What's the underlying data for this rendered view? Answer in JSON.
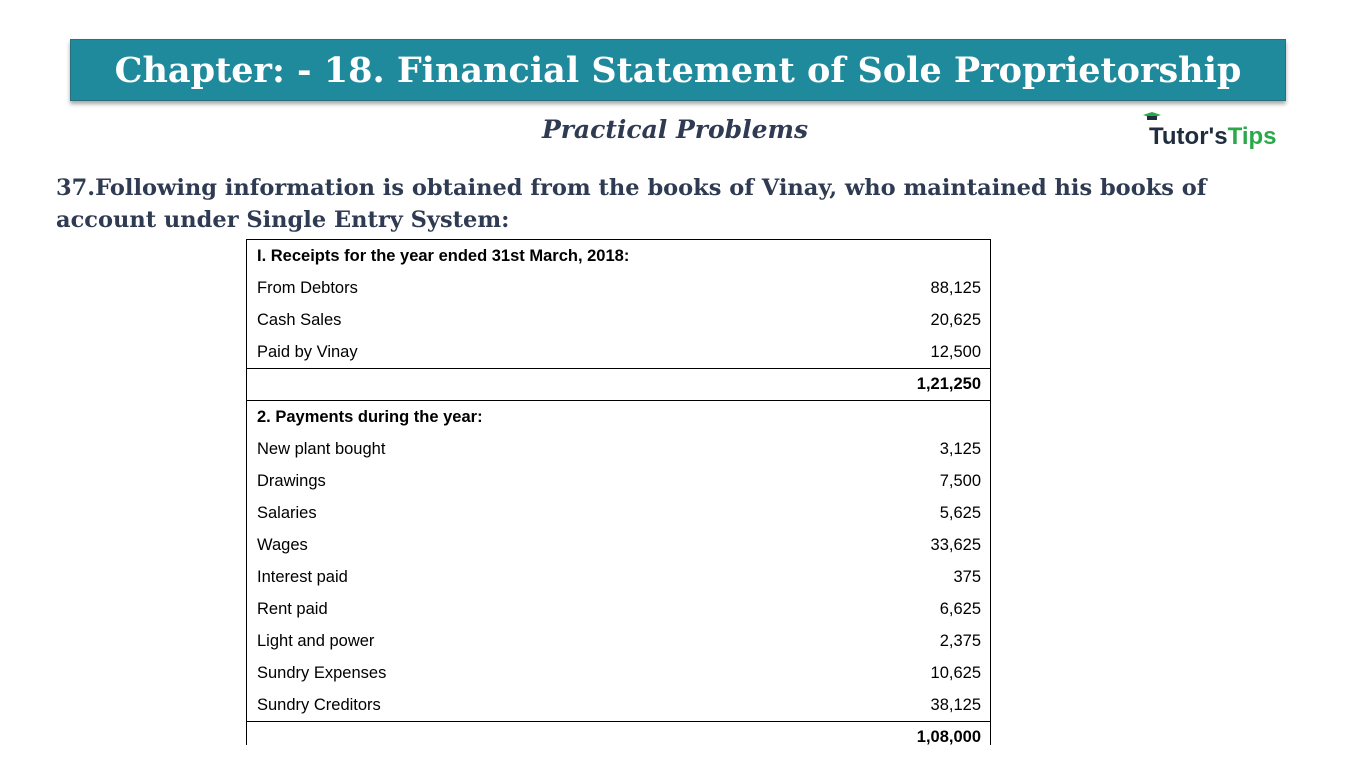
{
  "banner": {
    "title": "Chapter: - 18. Financial Statement of Sole Proprietorship"
  },
  "subtitle": "Practical Problems",
  "logo": {
    "part1": "Tutor's",
    "part2": "Tips",
    "icon": "graduation-cap-icon",
    "accent": "#2aa84a"
  },
  "question": "37.Following information is obtained from the books of Vinay, who maintained his books of account under Single Entry System:",
  "colors": {
    "banner": "#1f8a9c",
    "text": "#2f3b52"
  },
  "receipts": {
    "heading": "I. Receipts for the year ended 31st March, 2018:",
    "items": [
      {
        "label": "From Debtors",
        "amount": "88,125"
      },
      {
        "label": "Cash Sales",
        "amount": "20,625"
      },
      {
        "label": "Paid by Vinay",
        "amount": "12,500"
      }
    ],
    "total": "1,21,250"
  },
  "payments": {
    "heading": "2. Payments during the year:",
    "items": [
      {
        "label": "New plant bought",
        "amount": "3,125"
      },
      {
        "label": "Drawings",
        "amount": "7,500"
      },
      {
        "label": "Salaries",
        "amount": "5,625"
      },
      {
        "label": "Wages",
        "amount": "33,625"
      },
      {
        "label": "Interest paid",
        "amount": "375"
      },
      {
        "label": "Rent paid",
        "amount": "6,625"
      },
      {
        "label": "Light and power",
        "amount": "2,375"
      },
      {
        "label": "Sundry Expenses",
        "amount": "10,625"
      },
      {
        "label": "Sundry Creditors",
        "amount": "38,125"
      }
    ],
    "total": "1,08,000"
  }
}
